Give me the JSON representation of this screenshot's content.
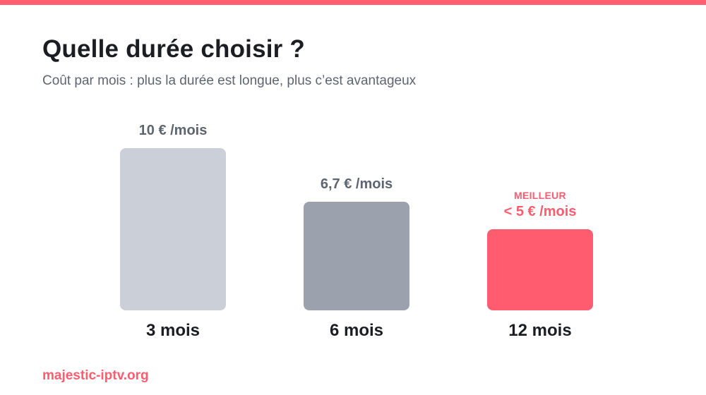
{
  "title": "Quelle durée choisir ?",
  "subtitle": "Coût par mois : plus la durée est longue, plus c’est avantageux",
  "footer": "majestic-iptv.org",
  "chart_data": {
    "type": "bar",
    "categories": [
      "3 mois",
      "6 mois",
      "12 mois"
    ],
    "values": [
      10,
      6.7,
      5
    ],
    "value_labels": [
      "10 € /mois",
      "6,7 € /mois",
      "< 5 € /mois"
    ],
    "badges": [
      "",
      "",
      "MEILLEUR"
    ],
    "colors": [
      "#cbd0d8",
      "#9ca2ad",
      "#ff5c70"
    ],
    "label_colors": [
      "#5d6570",
      "#5d6570",
      "#ff5c70"
    ],
    "ylim": [
      0,
      10
    ]
  }
}
